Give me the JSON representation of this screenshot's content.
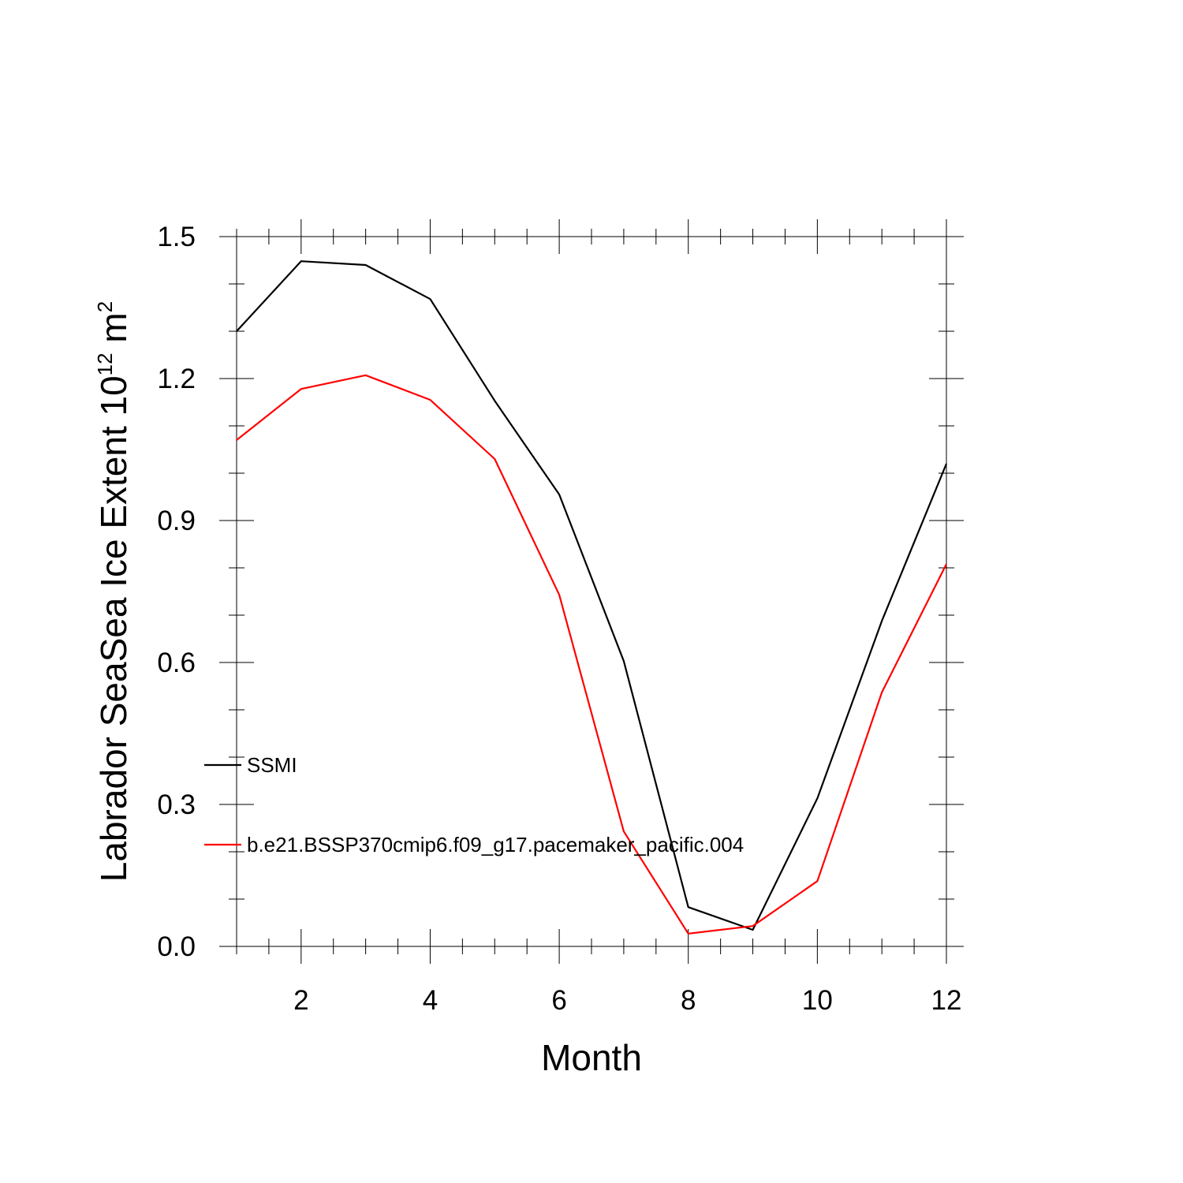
{
  "chart_data": {
    "type": "line",
    "title": "",
    "xlabel": "Month",
    "ylabel": {
      "base": "Labrador SeaSea Ice Extent 10",
      "exp1": "12",
      "unit": " m",
      "exp2": "2"
    },
    "xlim": [
      1,
      12
    ],
    "ylim": [
      0.0,
      1.5
    ],
    "x_ticks": [
      2,
      4,
      6,
      8,
      10,
      12
    ],
    "y_ticks": [
      "0.0",
      "0.3",
      "0.6",
      "0.9",
      "1.2",
      "1.5"
    ],
    "x": [
      1,
      2,
      3,
      4,
      5,
      6,
      7,
      8,
      9,
      10,
      11,
      12
    ],
    "series": [
      {
        "name": "SSMI",
        "color": "#000000",
        "values": [
          1.3,
          1.448,
          1.44,
          1.368,
          1.153,
          0.955,
          0.603,
          0.083,
          0.035,
          0.313,
          0.688,
          1.02
        ]
      },
      {
        "name": "b.e21.BSSP370cmip6.f09_g17.pacemaker_pacific.004",
        "color": "#ff0000",
        "values": [
          1.07,
          1.178,
          1.207,
          1.155,
          1.03,
          0.743,
          0.243,
          0.027,
          0.043,
          0.138,
          0.537,
          0.808
        ]
      }
    ],
    "grid": false,
    "legend_placement": "lower-left"
  }
}
